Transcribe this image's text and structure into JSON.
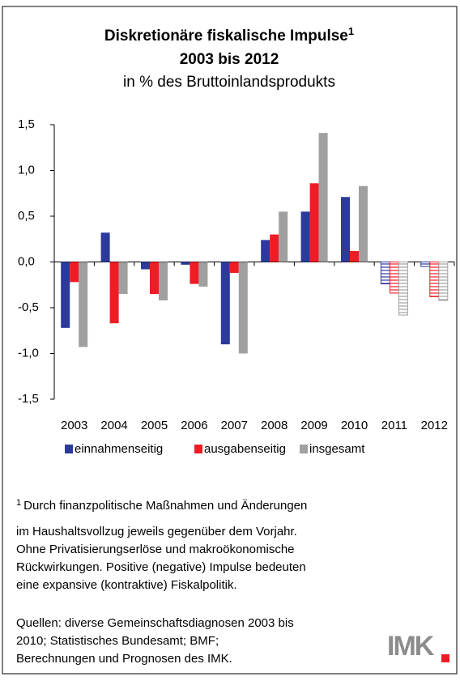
{
  "chart_data": {
    "type": "bar",
    "title": "Diskretionäre fiskalische Impulse",
    "title_footnote_mark": "1",
    "subtitle": "2003 bis 2012",
    "subtitle2": "in % des Bruttoinlandsprodukts",
    "categories": [
      "2003",
      "2004",
      "2005",
      "2006",
      "2007",
      "2008",
      "2009",
      "2010",
      "2011",
      "2012"
    ],
    "hatched": [
      false,
      false,
      false,
      false,
      false,
      false,
      false,
      false,
      true,
      true
    ],
    "series": [
      {
        "name": "einnahmenseitig",
        "color": "#2b3a9b",
        "values": [
          -0.72,
          0.32,
          -0.08,
          -0.03,
          -0.9,
          0.24,
          0.55,
          0.71,
          -0.24,
          -0.05
        ]
      },
      {
        "name": "ausgabenseitig",
        "color": "#ee1c25",
        "values": [
          -0.22,
          -0.67,
          -0.35,
          -0.24,
          -0.12,
          0.3,
          0.86,
          0.12,
          -0.34,
          -0.38
        ]
      },
      {
        "name": "insgesamt",
        "color": "#a0a0a0",
        "values": [
          -0.93,
          -0.35,
          -0.42,
          -0.27,
          -1.0,
          0.55,
          1.41,
          0.83,
          -0.58,
          -0.42
        ]
      }
    ],
    "ylim": [
      -1.5,
      1.5
    ],
    "yticks": [
      {
        "value": -1.5,
        "label": "-1,5"
      },
      {
        "value": -1.0,
        "label": "-1,0"
      },
      {
        "value": -0.5,
        "label": "-0,5"
      },
      {
        "value": 0,
        "label": "0,0"
      },
      {
        "value": 0.5,
        "label": "0,5"
      },
      {
        "value": 1.0,
        "label": "1,0"
      },
      {
        "value": 1.5,
        "label": "1,5"
      }
    ],
    "grid": false,
    "legend": "bottom"
  },
  "footnote": {
    "mark": "1",
    "lines": [
      "Durch finanzpolitische Maßnahmen und Änderungen",
      "im Haushaltsvollzug jeweils gegenüber dem Vorjahr.",
      "Ohne Privatisierungserlöse und makroökonomische",
      "Rückwirkungen. Positive (negative) Impulse bedeuten",
      "eine expansive (kontraktive) Fiskalpolitik."
    ]
  },
  "sources": [
    "Quellen: diverse Gemeinschaftsdiagnosen 2003 bis",
    "2010; Statistisches Bundesamt;  BMF;",
    "Berechnungen und Prognosen des IMK."
  ],
  "logo": "IMK"
}
